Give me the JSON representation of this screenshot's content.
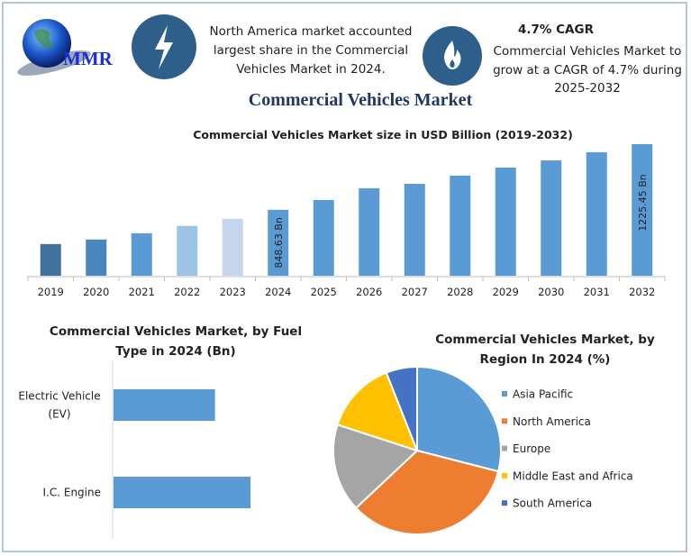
{
  "header": {
    "logo_text": "MMR",
    "info1": {
      "icon": "lightning-icon",
      "lines": [
        "North America market accounted",
        "largest share in the Commercial",
        "Vehicles Market in 2024."
      ]
    },
    "info2": {
      "icon": "flame-icon",
      "heading": "4.7% CAGR",
      "lines": [
        "Commercial Vehicles Market to",
        "grow at a CAGR of 4.7% during",
        "2025-2032"
      ]
    },
    "main_title": "Commercial Vehicles Market",
    "accent_color": "#2e5f8a",
    "title_color": "#1f3864"
  },
  "chart_data": [
    {
      "type": "bar",
      "title": "Commercial Vehicles Market size in USD Billion (2019-2032)",
      "categories": [
        "2019",
        "2020",
        "2021",
        "2022",
        "2023",
        "2024",
        "2025",
        "2026",
        "2027",
        "2028",
        "2029",
        "2030",
        "2031",
        "2032"
      ],
      "values": [
        652,
        678,
        714,
        756,
        797,
        848.63,
        905,
        972,
        998,
        1045,
        1091,
        1132,
        1179,
        1225.45
      ],
      "data_labels": {
        "2024": "848.63 Bn",
        "2032": "1225.45 Bn"
      },
      "colors": [
        "#41719c",
        "#4a86bd",
        "#5b9bd5",
        "#9dc3e6",
        "#c5d6ee",
        "#5b9bd5",
        "#5b9bd5",
        "#5b9bd5",
        "#5b9bd5",
        "#5b9bd5",
        "#5b9bd5",
        "#5b9bd5",
        "#5b9bd5",
        "#5b9bd5"
      ],
      "ylim": [
        470,
        1300
      ],
      "grid": false
    },
    {
      "type": "bar",
      "orientation": "horizontal",
      "title_lines": [
        "Commercial Vehicles Market, by Fuel",
        "Type in 2024 (Bn)"
      ],
      "categories": [
        [
          "Electric Vehicle",
          "(EV)"
        ],
        [
          "I.C. Engine"
        ]
      ],
      "values": [
        361,
        487
      ],
      "color": "#5b9bd5",
      "xlim": [
        0,
        700
      ],
      "grid": false
    },
    {
      "type": "pie",
      "title_lines": [
        "Commercial Vehicles Market, by",
        "Region In 2024 (%)"
      ],
      "labels": [
        "Asia Pacific",
        "North America",
        "Europe",
        "Middle East and Africa",
        "South America"
      ],
      "values": [
        29,
        34,
        17,
        14,
        6
      ],
      "colors": [
        "#5b9bd5",
        "#ed7d31",
        "#a5a5a5",
        "#ffc000",
        "#4472c4"
      ],
      "legend": "right"
    }
  ]
}
